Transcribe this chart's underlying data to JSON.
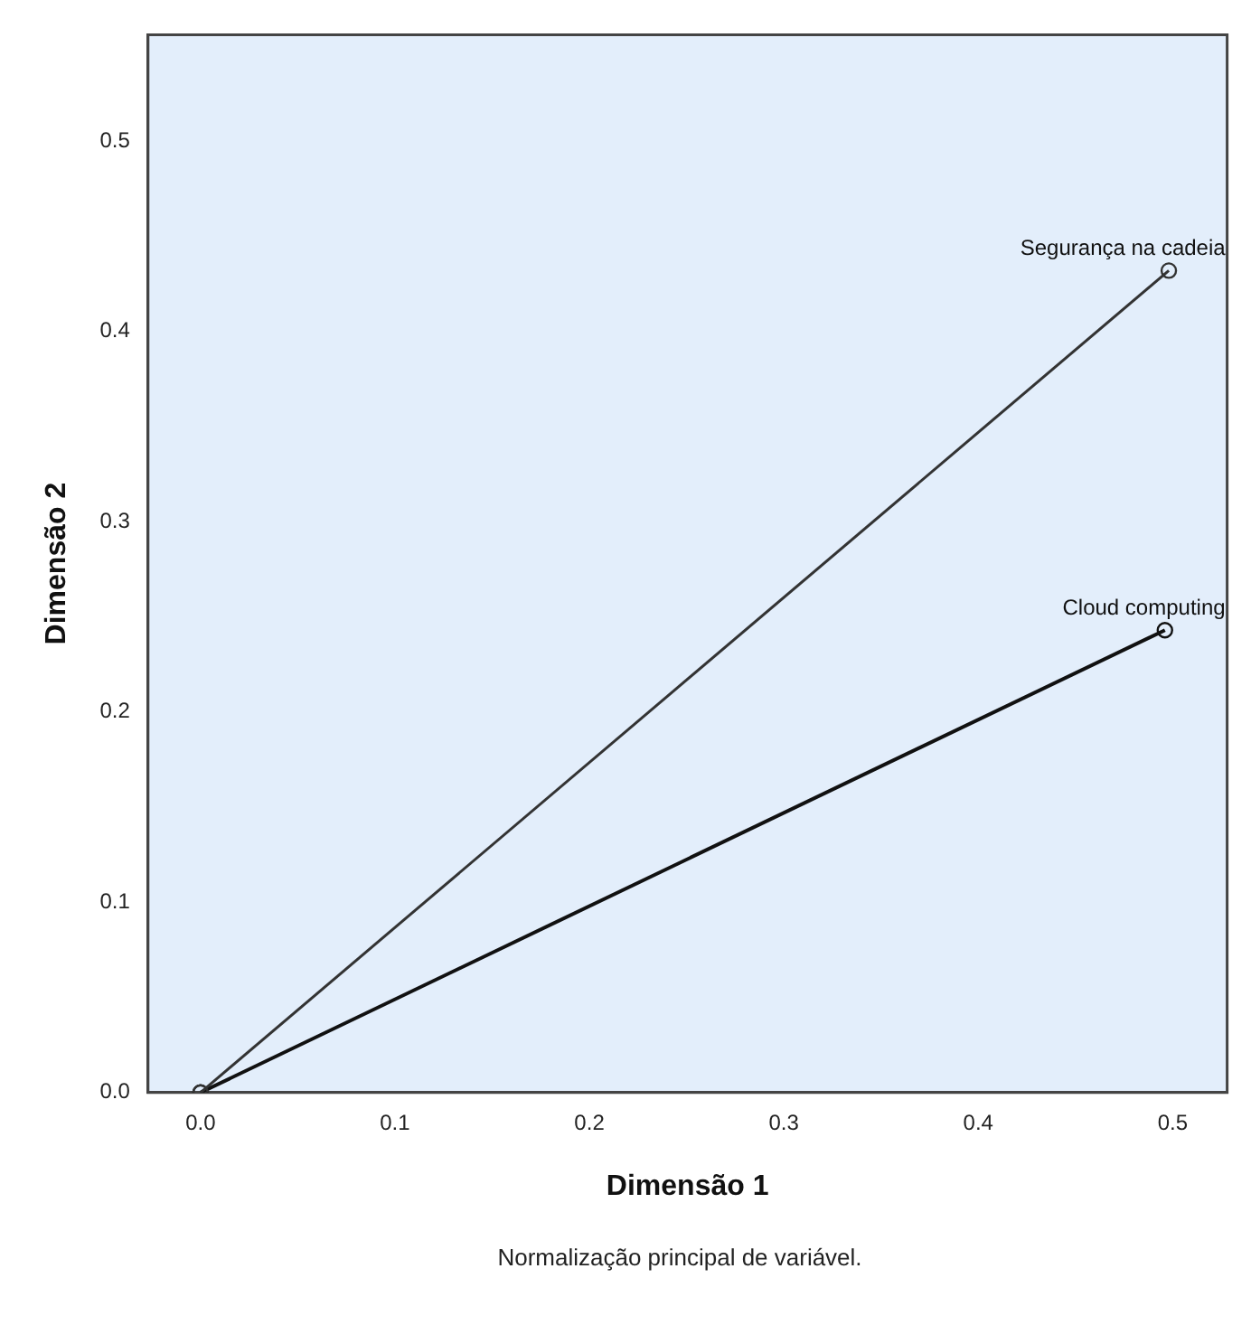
{
  "chart_data": {
    "type": "line",
    "xlabel": "Dimensão 1",
    "ylabel": "Dimensão 2",
    "xlim": [
      -0.027,
      0.528
    ],
    "xticks": [
      {
        "value": 0,
        "label": "0.0"
      },
      0.1,
      0.2,
      0.3,
      0.4,
      0.5
    ],
    "ylim": [
      0,
      0.556
    ],
    "yticks": [
      {
        "value": 0,
        "label": "0.0"
      },
      0.1,
      0.2,
      0.3,
      0.4,
      0.5
    ],
    "grid": false,
    "legend": false,
    "marker": "circle",
    "line_style": "solid",
    "series": [
      {
        "name": "Segurança na cadeia",
        "color": "#333333",
        "x": [
          0,
          0.498
        ],
        "values": [
          0,
          0.432
        ]
      },
      {
        "name": "Cloud computing",
        "color": "#111111",
        "x": [
          0,
          0.496
        ],
        "values": [
          0,
          0.243
        ]
      }
    ],
    "annotations": [
      "Normalização principal de variável."
    ]
  }
}
